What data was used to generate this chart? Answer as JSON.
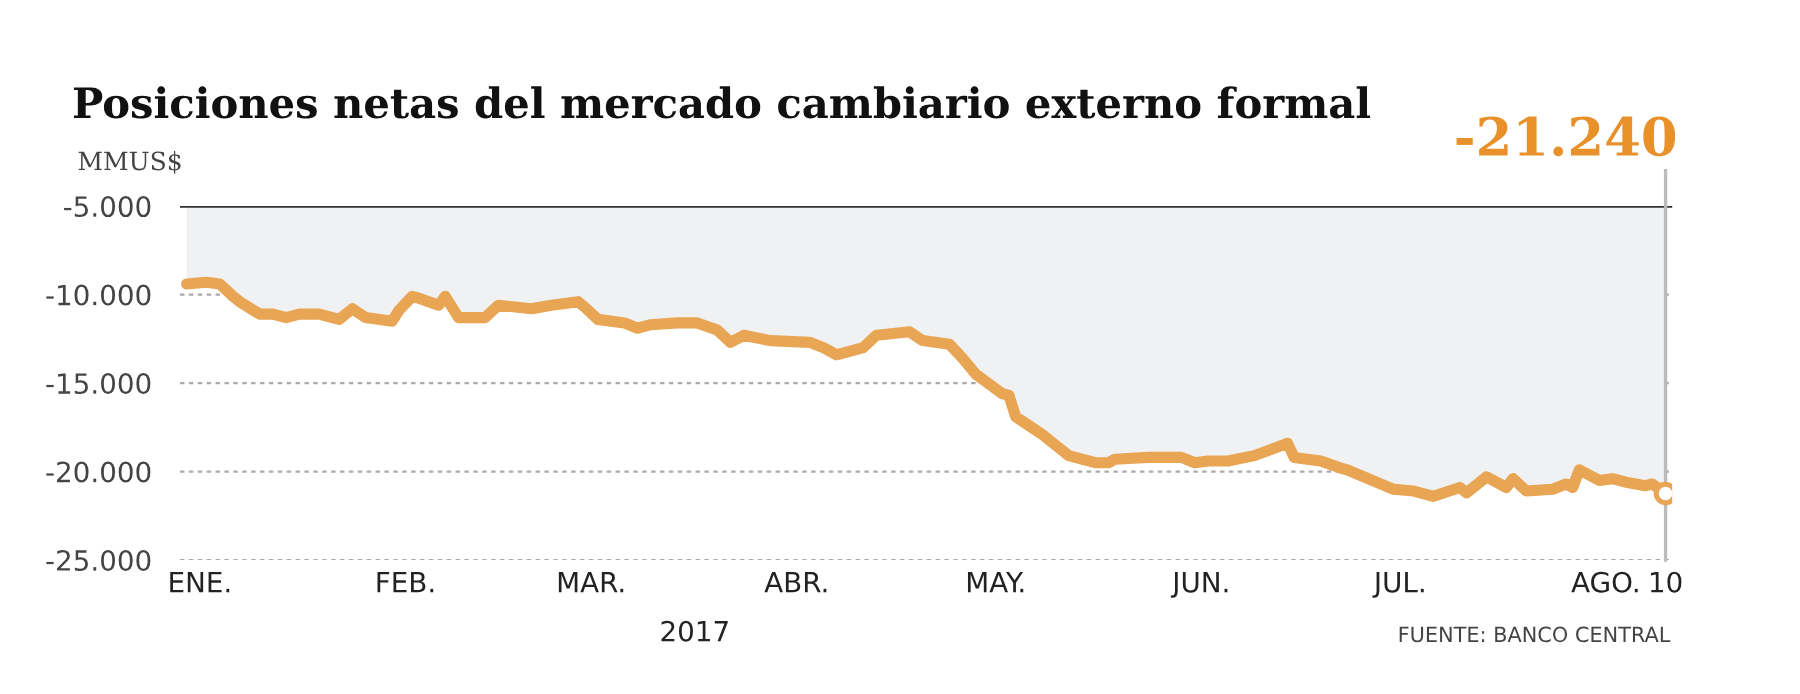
{
  "chart_data": {
    "type": "area",
    "title": "Posiciones netas del mercado cambiario externo formal",
    "ylabel": "MMUS$",
    "xlabel": "2017",
    "x": [
      "2016-12-30",
      "2017-01-02",
      "2017-01-04",
      "2017-01-06",
      "2017-01-07",
      "2017-01-10",
      "2017-01-12",
      "2017-01-14",
      "2017-01-16",
      "2017-01-19",
      "2017-01-22",
      "2017-01-24",
      "2017-01-26",
      "2017-01-30",
      "2017-01-31",
      "2017-02-02",
      "2017-02-03",
      "2017-02-06",
      "2017-02-07",
      "2017-02-09",
      "2017-02-13",
      "2017-02-15",
      "2017-02-20",
      "2017-02-23",
      "2017-02-27",
      "2017-02-28",
      "2017-03-02",
      "2017-03-06",
      "2017-03-08",
      "2017-03-10",
      "2017-03-14",
      "2017-03-17",
      "2017-03-20",
      "2017-03-22",
      "2017-03-24",
      "2017-03-28",
      "2017-04-03",
      "2017-04-05",
      "2017-04-07",
      "2017-04-11",
      "2017-04-13",
      "2017-04-18",
      "2017-04-20",
      "2017-04-24",
      "2017-04-26",
      "2017-04-28",
      "2017-05-02",
      "2017-05-03",
      "2017-05-04",
      "2017-05-08",
      "2017-05-10",
      "2017-05-12",
      "2017-05-16",
      "2017-05-18",
      "2017-05-19",
      "2017-05-24",
      "2017-05-29",
      "2017-05-31",
      "2017-06-02",
      "2017-06-05",
      "2017-06-09",
      "2017-06-14",
      "2017-06-15",
      "2017-06-19",
      "2017-06-22",
      "2017-06-23",
      "2017-06-30",
      "2017-07-03",
      "2017-07-06",
      "2017-07-10",
      "2017-07-11",
      "2017-07-14",
      "2017-07-17",
      "2017-07-18",
      "2017-07-20",
      "2017-07-24",
      "2017-07-26",
      "2017-07-27",
      "2017-07-28",
      "2017-07-31",
      "2017-08-02",
      "2017-08-04",
      "2017-08-07",
      "2017-08-08",
      "2017-08-10"
    ],
    "series": [
      {
        "color": "#e8a553",
        "values": [
          -9400,
          -9300,
          -9400,
          -10100,
          -10400,
          -11100,
          -11100,
          -11300,
          -11100,
          -11100,
          -11400,
          -10800,
          -11300,
          -11500,
          -10900,
          -10100,
          -10200,
          -10600,
          -10100,
          -11300,
          -11300,
          -10600,
          -10800,
          -10600,
          -10400,
          -10700,
          -11400,
          -11600,
          -11900,
          -11700,
          -11600,
          -11600,
          -12000,
          -12700,
          -12300,
          -12600,
          -12700,
          -13000,
          -13400,
          -13000,
          -12300,
          -12100,
          -12600,
          -12800,
          -13600,
          -14500,
          -15600,
          -15700,
          -16900,
          -17900,
          -18500,
          -19100,
          -19500,
          -19500,
          -19300,
          -19200,
          -19200,
          -19500,
          -19400,
          -19400,
          -19100,
          -18400,
          -19200,
          -19400,
          -19800,
          -19900,
          -21000,
          -21100,
          -21400,
          -20900,
          -21200,
          -20300,
          -20900,
          -20400,
          -21100,
          -21000,
          -20700,
          -20900,
          -19900,
          -20500,
          -20400,
          -20600,
          -20800,
          -20700,
          -21240
        ]
      },
      {
        "type": "scatter",
        "color": "#e8a553",
        "x": [
          "2017-08-10"
        ],
        "values": [
          -21240
        ]
      }
    ],
    "ylim": [
      -25000,
      -5000
    ],
    "yticks": [
      {
        "value": -25000,
        "label": "-25.000"
      },
      {
        "value": -20000,
        "label": "-20.000"
      },
      {
        "value": -15000,
        "label": "-15.000"
      },
      {
        "value": -10000,
        "label": "-10.000"
      },
      {
        "value": -5000,
        "label": "-5.000"
      }
    ],
    "xlim": [
      "2016-12-29",
      "2017-08-11"
    ],
    "xticks": [
      {
        "value": "2017-01-01",
        "label": "ENE."
      },
      {
        "value": "2017-02-01",
        "label": "FEB."
      },
      {
        "value": "2017-03-01",
        "label": "MAR."
      },
      {
        "value": "2017-04-01",
        "label": "ABR."
      },
      {
        "value": "2017-05-01",
        "label": "MAY."
      },
      {
        "value": "2017-06-01",
        "label": "JUN."
      },
      {
        "value": "2017-07-01",
        "label": "JUL."
      },
      {
        "value": "2017-08-01",
        "label": "AGO."
      },
      {
        "value": "2017-08-10",
        "label": "10"
      }
    ],
    "grid": "y",
    "ref_lines": [
      {
        "axis": "y",
        "value": -5000,
        "color": "#333333"
      },
      {
        "axis": "x",
        "value": "2017-08-10",
        "color": "#bbbbbb"
      }
    ],
    "annotations": [
      "-21.240",
      "FUENTE: BANCO CENTRAL"
    ]
  }
}
